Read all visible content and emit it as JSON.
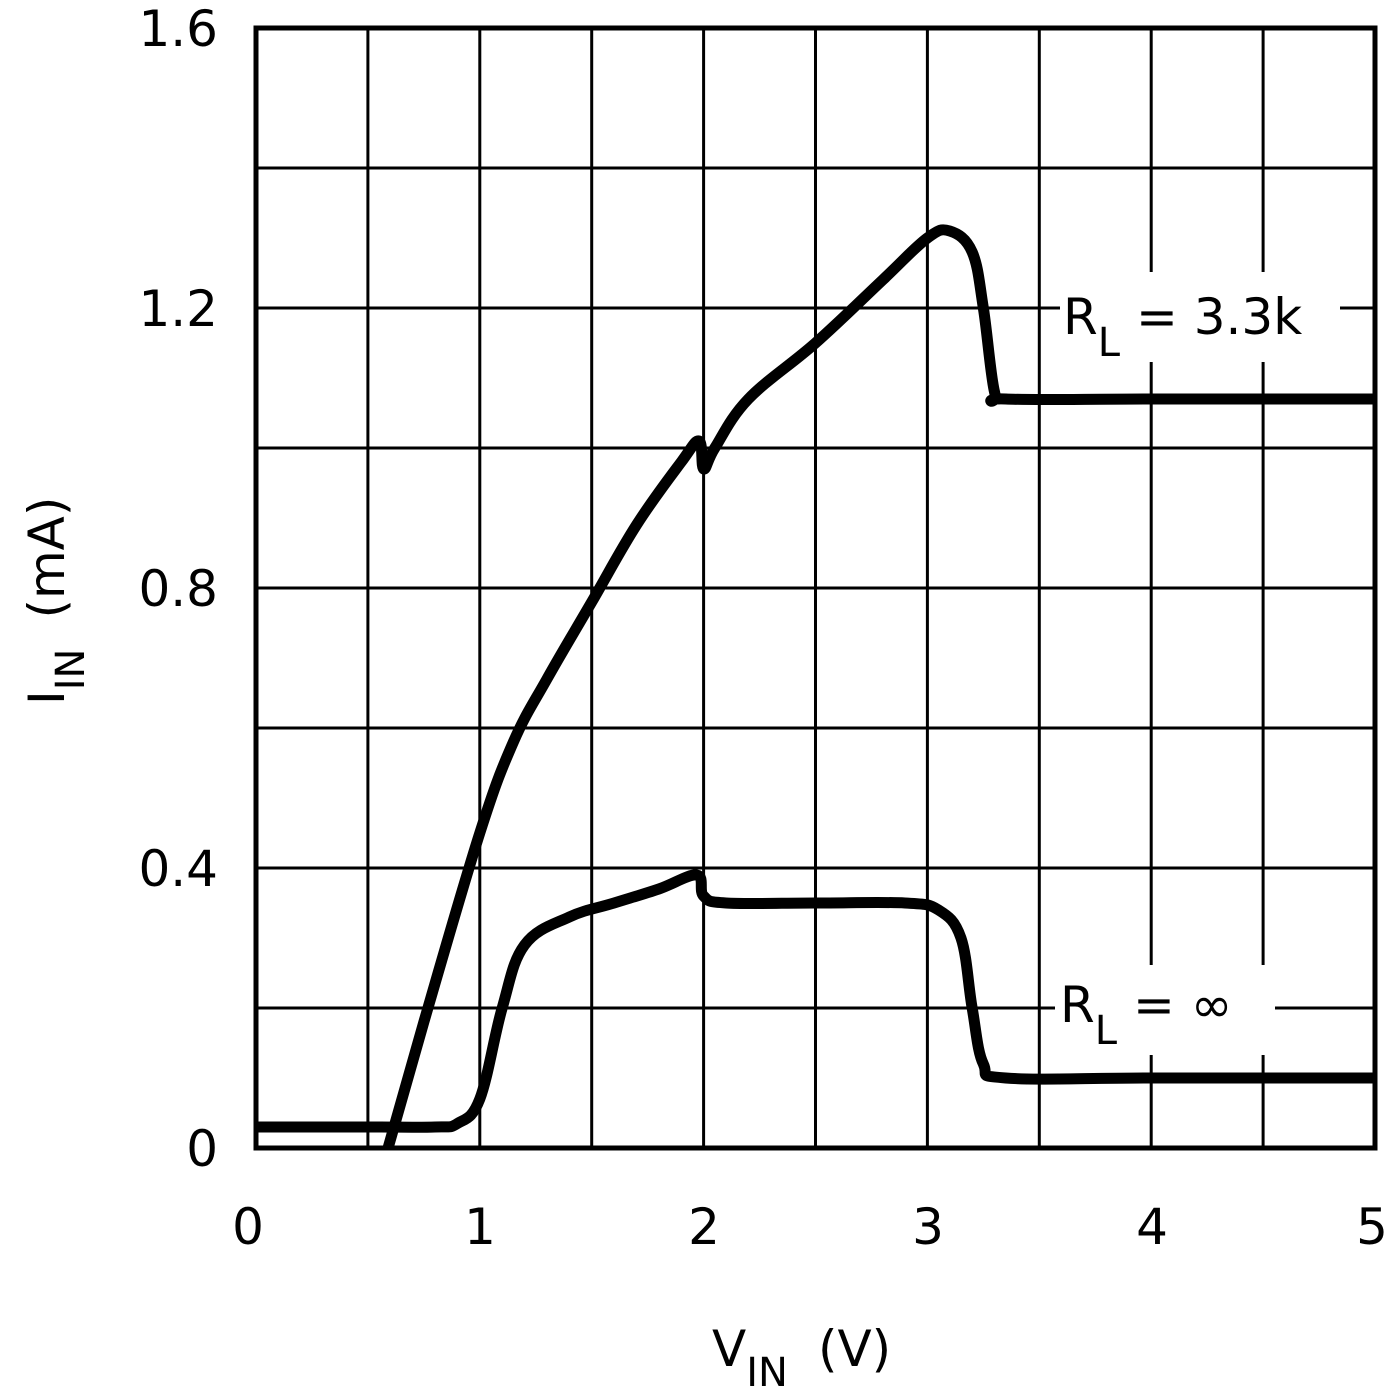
{
  "chart_data": {
    "type": "line",
    "title": "",
    "xlabel": "V_IN (V)",
    "ylabel": "I_IN (mA)",
    "xlim": [
      0,
      5
    ],
    "ylim": [
      0,
      1.6
    ],
    "x_ticks": [
      "0",
      "1",
      "2",
      "3",
      "4",
      "5"
    ],
    "y_ticks": [
      "0",
      "0.4",
      "0.8",
      "1.2",
      "1.6"
    ],
    "grid": true,
    "grid_x_step": 0.5,
    "grid_y_step": 0.2,
    "series": [
      {
        "name": "R_L = 3.3k",
        "label_main": "R",
        "label_sub": "L",
        "label_rest": " = 3.3k",
        "x": [
          0.59,
          0.75,
          1.0,
          1.15,
          1.3,
          1.5,
          1.7,
          1.9,
          1.98,
          2.0,
          2.05,
          2.2,
          2.5,
          2.8,
          3.0,
          3.1,
          3.2,
          3.25,
          3.3,
          3.35,
          4.0,
          5.0
        ],
        "y": [
          0.0,
          0.18,
          0.45,
          0.58,
          0.67,
          0.78,
          0.89,
          0.98,
          1.01,
          0.97,
          1.0,
          1.07,
          1.15,
          1.24,
          1.3,
          1.31,
          1.28,
          1.2,
          1.08,
          1.07,
          1.07,
          1.07
        ]
      },
      {
        "name": "R_L = ∞",
        "label_main": "R",
        "label_sub": "L",
        "label_rest": " = ∞",
        "x": [
          0.0,
          0.5,
          0.8,
          0.9,
          1.0,
          1.1,
          1.2,
          1.4,
          1.6,
          1.8,
          1.97,
          2.0,
          2.1,
          2.5,
          2.9,
          3.05,
          3.15,
          3.2,
          3.25,
          3.35,
          4.0,
          5.0
        ],
        "y": [
          0.03,
          0.03,
          0.03,
          0.035,
          0.07,
          0.2,
          0.29,
          0.33,
          0.35,
          0.37,
          0.39,
          0.36,
          0.35,
          0.35,
          0.35,
          0.34,
          0.3,
          0.2,
          0.12,
          0.1,
          0.1,
          0.1
        ]
      }
    ],
    "colors": {
      "line": "#000000",
      "grid": "#000000",
      "background": "#ffffff"
    }
  },
  "labels": {
    "x_title_main": "V",
    "x_title_sub": "IN",
    "x_title_unit": "(V)",
    "y_title_main": "I",
    "y_title_sub": "IN",
    "y_title_unit": "(mA)"
  }
}
